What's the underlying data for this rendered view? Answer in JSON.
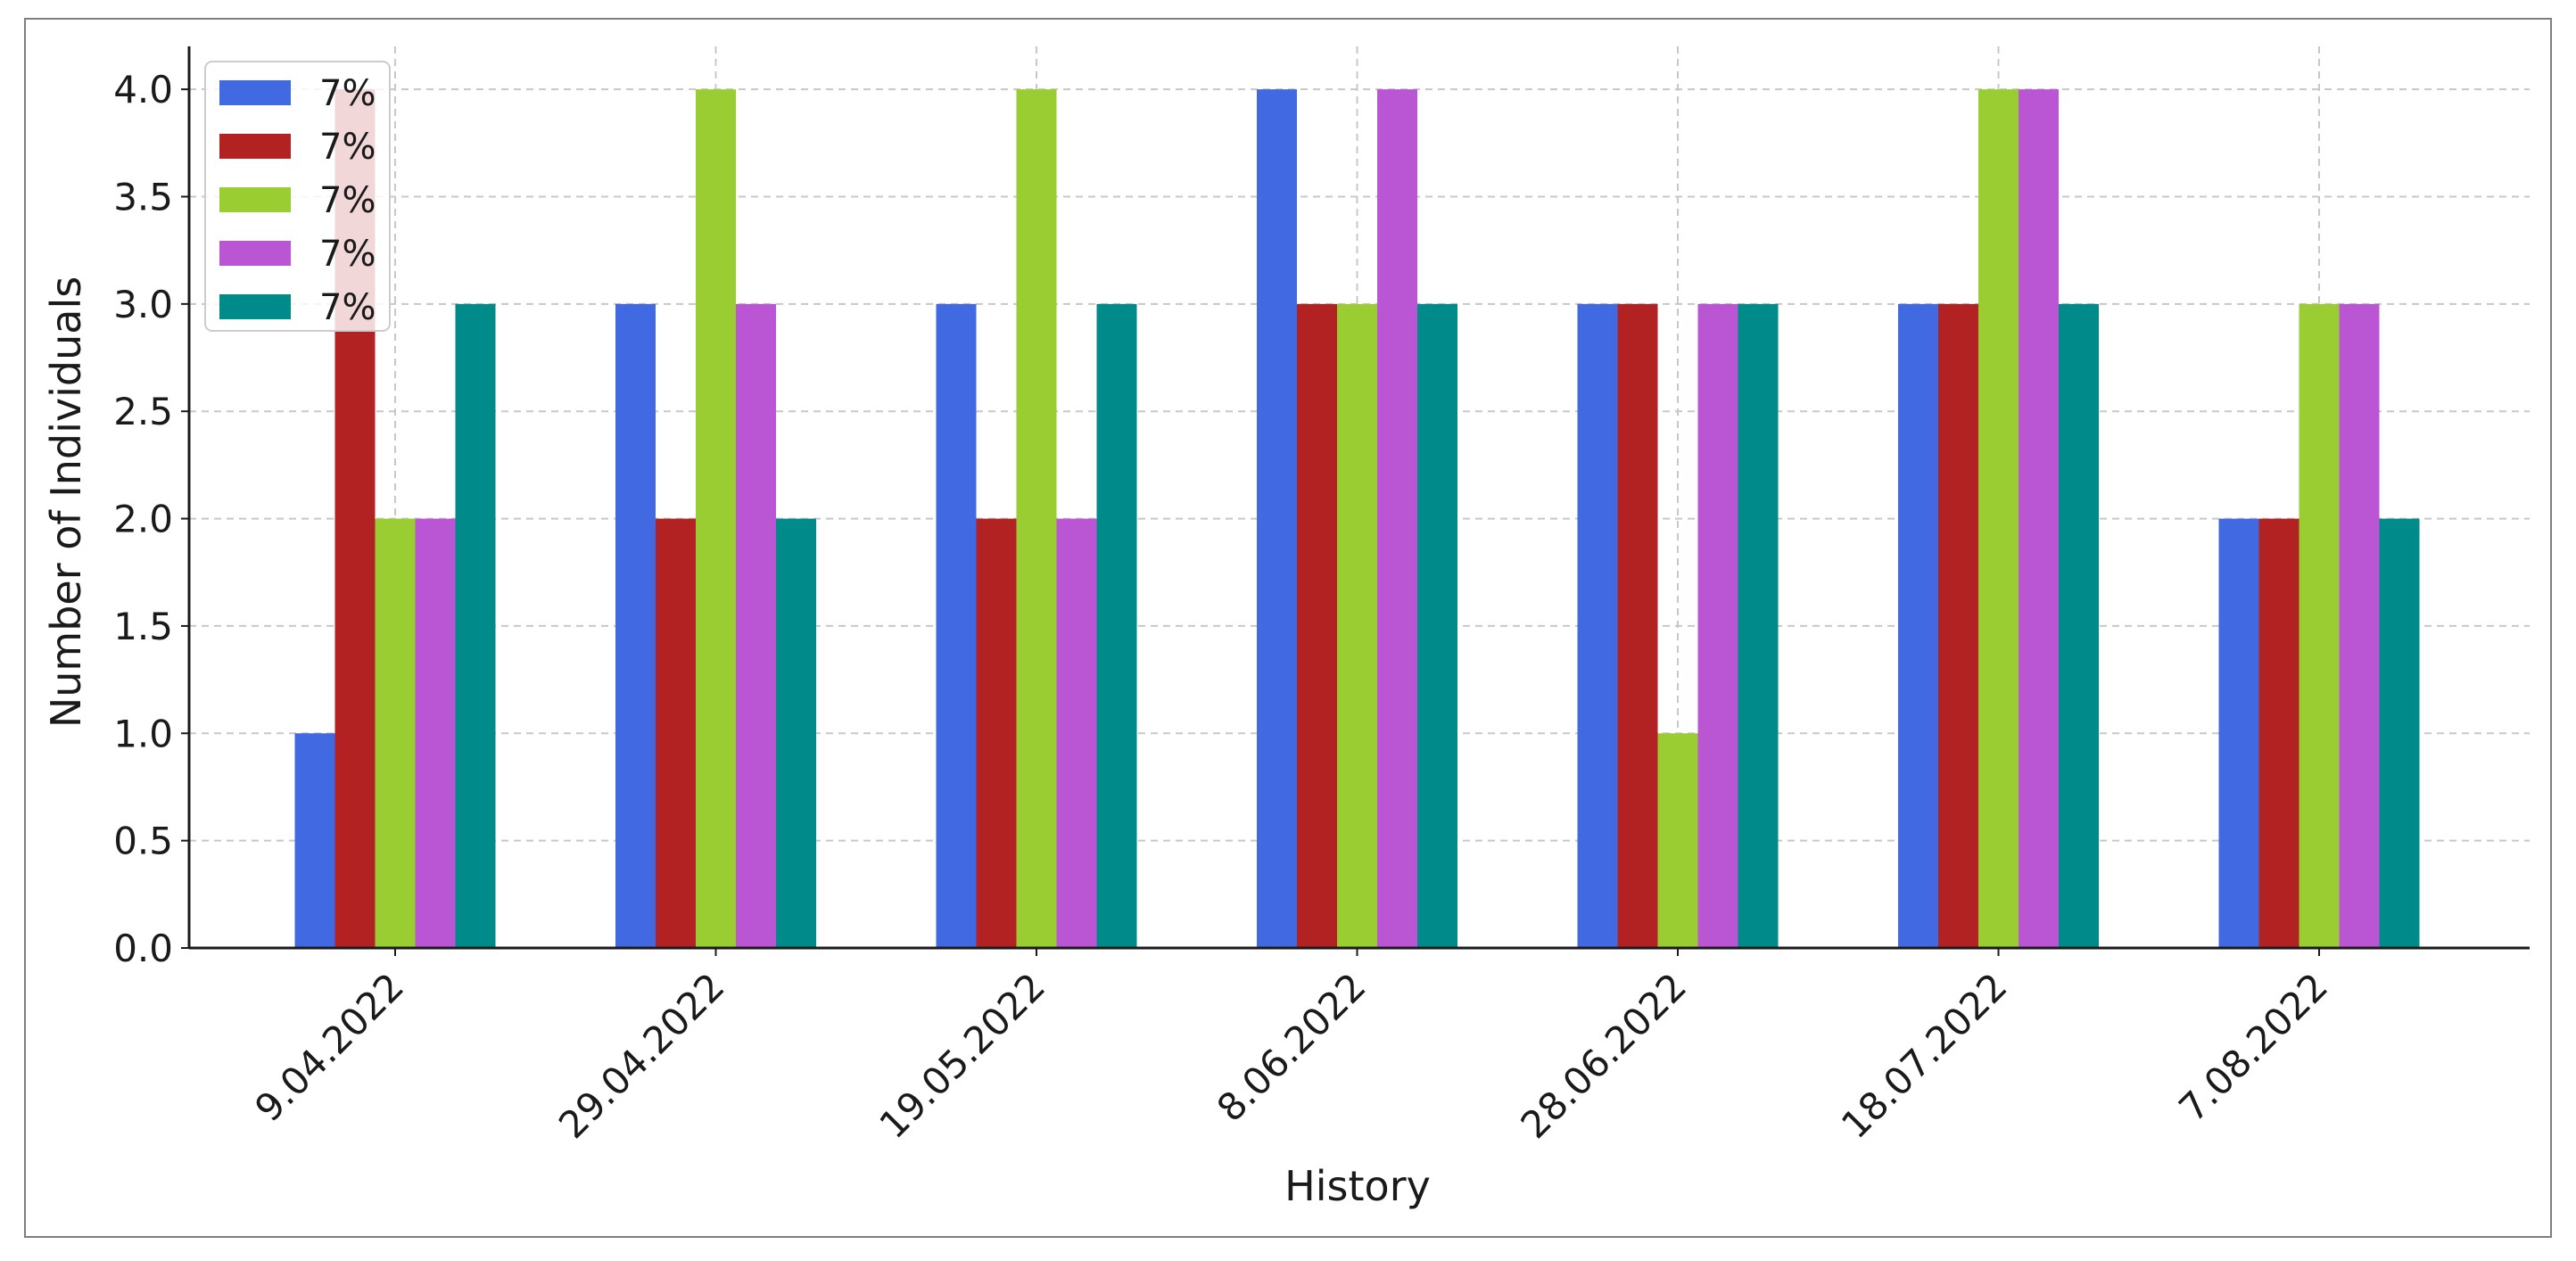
{
  "chart_data": {
    "type": "bar",
    "title": "",
    "xlabel": "History",
    "ylabel": "Number of Individuals",
    "categories": [
      "9.04.2022",
      "29.04.2022",
      "19.05.2022",
      "8.06.2022",
      "28.06.2022",
      "18.07.2022",
      "7.08.2022"
    ],
    "series": [
      {
        "name": "7%",
        "color": "#4169e1",
        "values": [
          1,
          3,
          3,
          4,
          3,
          3,
          2
        ]
      },
      {
        "name": "7%",
        "color": "#b22222",
        "values": [
          4,
          2,
          2,
          3,
          3,
          3,
          2
        ]
      },
      {
        "name": "7%",
        "color": "#9acd32",
        "values": [
          2,
          4,
          4,
          3,
          1,
          4,
          3
        ]
      },
      {
        "name": "7%",
        "color": "#ba55d3",
        "values": [
          2,
          3,
          2,
          4,
          3,
          4,
          3
        ]
      },
      {
        "name": "7%",
        "color": "#008b8b",
        "values": [
          3,
          2,
          3,
          3,
          3,
          3,
          2
        ]
      }
    ],
    "ylim": [
      0,
      4.2
    ],
    "yticks": [
      "0.0",
      "0.5",
      "1.0",
      "1.5",
      "2.0",
      "2.5",
      "3.0",
      "3.5",
      "4.0"
    ],
    "grid": true,
    "legend_position": "top-left"
  }
}
